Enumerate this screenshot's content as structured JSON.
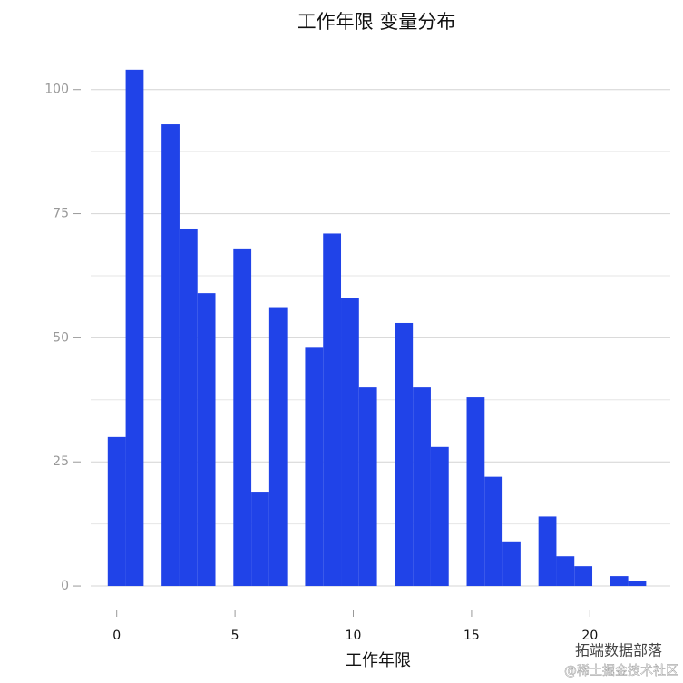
{
  "chart_data": {
    "type": "histogram",
    "title": "工作年限 变量分布",
    "x_label": "工作年限",
    "bins": [
      -0.37931,
      0.37931,
      1.13793,
      1.89655,
      2.65517,
      3.41379,
      4.17241,
      4.93103,
      5.68966,
      6.44828,
      7.2069,
      7.96552,
      8.72414,
      9.48276,
      10.2414,
      11.0,
      11.7586,
      12.5172,
      13.2759,
      14.0345,
      14.7931,
      15.5517,
      16.3103,
      17.069,
      17.8276,
      18.5862,
      19.3448,
      20.1034,
      20.8621,
      21.6207,
      22.3793
    ],
    "values": [
      30,
      104,
      0,
      93,
      72,
      59,
      0,
      68,
      19,
      56,
      0,
      48,
      71,
      58,
      40,
      0,
      53,
      40,
      28,
      0,
      38,
      22,
      9,
      0,
      14,
      6,
      4,
      0,
      2,
      1
    ],
    "color": "#2043e8",
    "xlim": [
      -1.1,
      23.4
    ],
    "xticks": [
      0,
      5,
      10,
      15,
      20
    ],
    "ylim": [
      -2,
      110
    ],
    "yticks": [
      0,
      25,
      50,
      75,
      100
    ],
    "minor_yticks": [
      12.5,
      37.5,
      62.5,
      87.5
    ],
    "grid": true,
    "annotations": [
      "拓端数据部落",
      "@稀土掘金技术社区"
    ]
  }
}
